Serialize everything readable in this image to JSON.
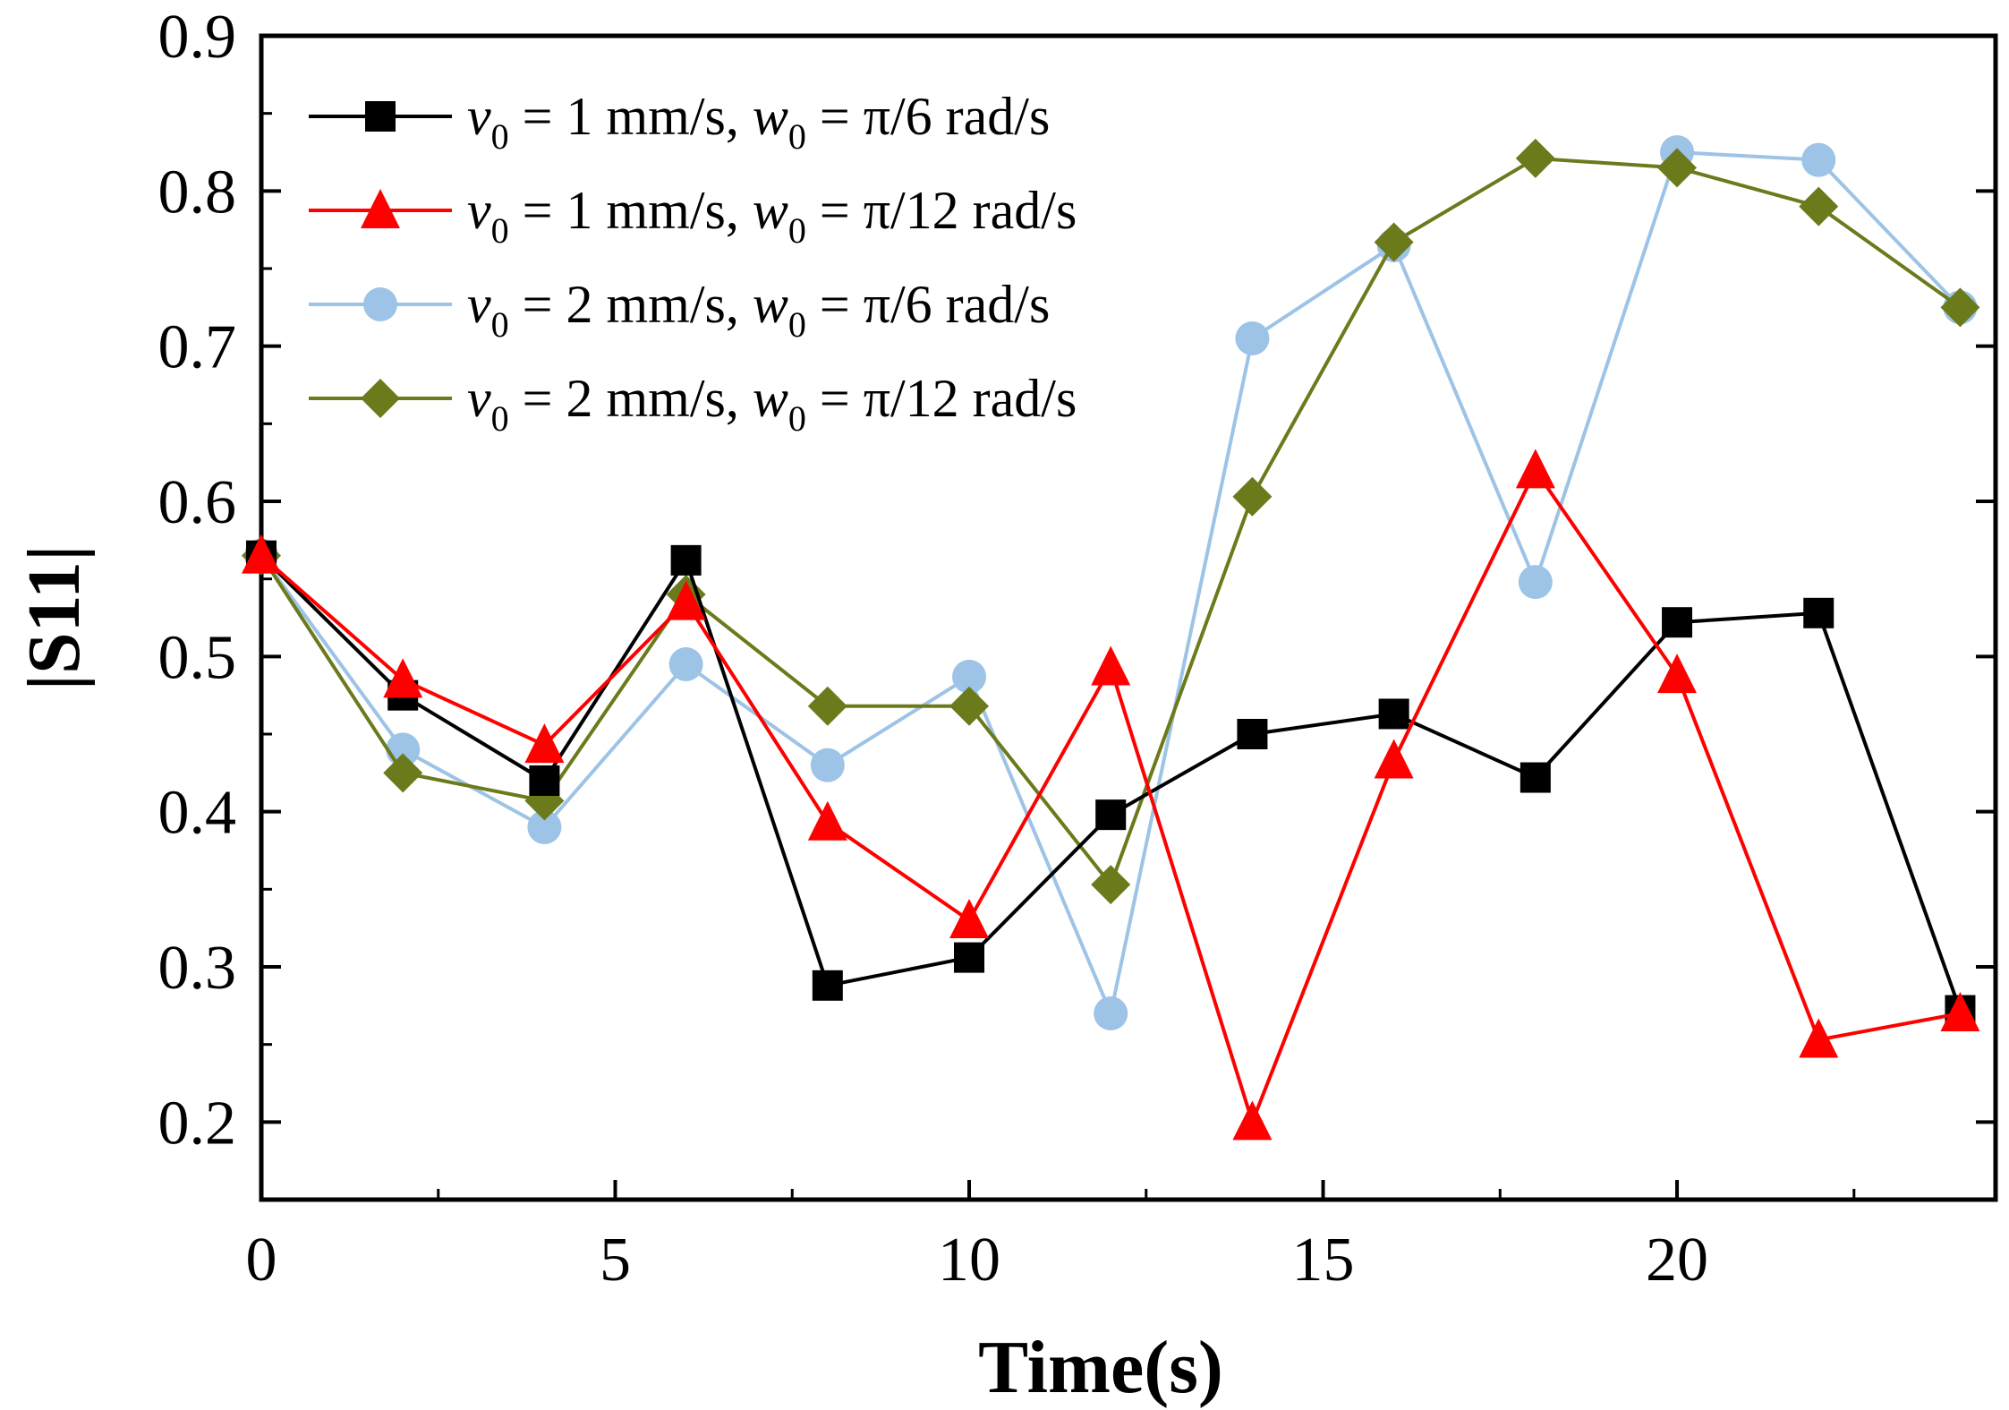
{
  "chart_data": {
    "type": "line",
    "title": "",
    "xlabel": "Time(s)",
    "ylabel": "|S11|",
    "xlim": [
      0,
      24.5
    ],
    "ylim": [
      0.15,
      0.9
    ],
    "xticks": [
      0,
      5,
      10,
      15,
      20
    ],
    "yticks": [
      0.2,
      0.3,
      0.4,
      0.5,
      0.6,
      0.7,
      0.8,
      0.9
    ],
    "xtick_labels": [
      "0",
      "5",
      "10",
      "15",
      "20"
    ],
    "ytick_labels": [
      "0.2",
      "0.3",
      "0.4",
      "0.5",
      "0.6",
      "0.7",
      "0.8",
      "0.9"
    ],
    "grid": false,
    "legend_position": "top-left",
    "x": [
      0,
      2,
      4,
      6,
      8,
      10,
      12,
      14,
      16,
      18,
      20,
      22,
      24
    ],
    "series": [
      {
        "name": "v0 = 1 mm/s, w0 = π/6 rad/s",
        "legend": {
          "var1": "v",
          "sub1": "0",
          "mid": " = 1 mm/s, ",
          "var2": "w",
          "sub2": "0",
          "tail": " = π/6 rad/s"
        },
        "color": "#000000",
        "marker": "square",
        "values": [
          0.565,
          0.475,
          0.42,
          0.562,
          0.288,
          0.306,
          0.398,
          0.45,
          0.463,
          0.422,
          0.522,
          0.528,
          0.272
        ]
      },
      {
        "name": "v0 = 1 mm/s, w0 = π/12 rad/s",
        "legend": {
          "var1": "v",
          "sub1": "0",
          "mid": " = 1 mm/s, ",
          "var2": "w",
          "sub2": "0",
          "tail": " = π/12 rad/s"
        },
        "color": "#ff0000",
        "marker": "triangle",
        "values": [
          0.565,
          0.485,
          0.443,
          0.535,
          0.393,
          0.33,
          0.493,
          0.2,
          0.433,
          0.62,
          0.488,
          0.253,
          0.27
        ]
      },
      {
        "name": "v0 = 2 mm/s, w0 = π/6 rad/s",
        "legend": {
          "var1": "v",
          "sub1": "0",
          "mid": " = 2 mm/s, ",
          "var2": "w",
          "sub2": "0",
          "tail": " = π/6 rad/s"
        },
        "color": "#9dc3e6",
        "marker": "circle",
        "values": [
          0.565,
          0.44,
          0.39,
          0.495,
          0.43,
          0.487,
          0.27,
          0.705,
          0.765,
          0.548,
          0.825,
          0.82,
          0.725
        ]
      },
      {
        "name": "v0 = 2 mm/s, w0 = π/12 rad/s",
        "legend": {
          "var1": "v",
          "sub1": "0",
          "mid": " = 2 mm/s, ",
          "var2": "w",
          "sub2": "0",
          "tail": " = π/12 rad/s"
        },
        "color": "#6b7a1b",
        "marker": "diamond",
        "values": [
          0.565,
          0.425,
          0.407,
          0.54,
          0.468,
          0.468,
          0.353,
          0.603,
          0.767,
          0.821,
          0.815,
          0.79,
          0.725
        ]
      }
    ]
  }
}
